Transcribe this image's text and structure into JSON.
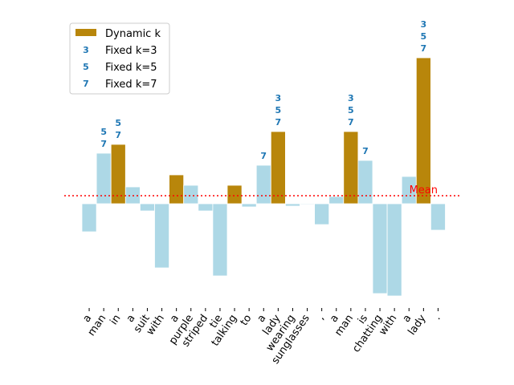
{
  "chart_data": {
    "type": "bar",
    "categories": [
      "a",
      "man",
      "in",
      "a",
      "suit",
      "with",
      "a",
      "purple",
      "striped",
      "tie",
      "talking",
      "to",
      "a",
      "lady",
      "wearing",
      "sunglasses",
      ",",
      "a",
      "man",
      "is",
      "chatting",
      "with",
      "a",
      "lady",
      "."
    ],
    "values": [
      -3.5,
      6.3,
      7.4,
      2.1,
      -0.9,
      -8.0,
      3.6,
      2.3,
      -0.9,
      -9.0,
      2.3,
      -0.4,
      4.8,
      9.0,
      -0.3,
      -0.1,
      -2.6,
      0.9,
      9.0,
      5.4,
      -11.2,
      -11.5,
      3.4,
      18.2,
      -3.3
    ],
    "bar_colors": [
      "#add8e6",
      "#add8e6",
      "#b8860b",
      "#add8e6",
      "#add8e6",
      "#add8e6",
      "#b8860b",
      "#add8e6",
      "#add8e6",
      "#add8e6",
      "#b8860b",
      "#add8e6",
      "#add8e6",
      "#b8860b",
      "#add8e6",
      "#add8e6",
      "#add8e6",
      "#add8e6",
      "#b8860b",
      "#add8e6",
      "#add8e6",
      "#add8e6",
      "#add8e6",
      "#b8860b",
      "#add8e6"
    ],
    "annotations": [
      {
        "index": 1,
        "labels": [
          "5",
          "7"
        ]
      },
      {
        "index": 2,
        "labels": [
          "5",
          "7"
        ]
      },
      {
        "index": 12,
        "labels": [
          "7"
        ]
      },
      {
        "index": 13,
        "labels": [
          "3",
          "5",
          "7"
        ]
      },
      {
        "index": 18,
        "labels": [
          "3",
          "5",
          "7"
        ]
      },
      {
        "index": 19,
        "labels": [
          "7"
        ]
      },
      {
        "index": 23,
        "labels": [
          "3",
          "5",
          "7"
        ]
      }
    ],
    "mean": {
      "value": 1.0,
      "label": "Mean",
      "color": "#ff0000"
    },
    "legend": [
      {
        "name": "Dynamic k",
        "color": "#b8860b"
      },
      {
        "name": "Fixed k=3",
        "marker": "3"
      },
      {
        "name": "Fixed k=5",
        "marker": "5"
      },
      {
        "name": "Fixed k=7",
        "marker": "7"
      }
    ],
    "ylim": [
      -13,
      20.4
    ]
  }
}
